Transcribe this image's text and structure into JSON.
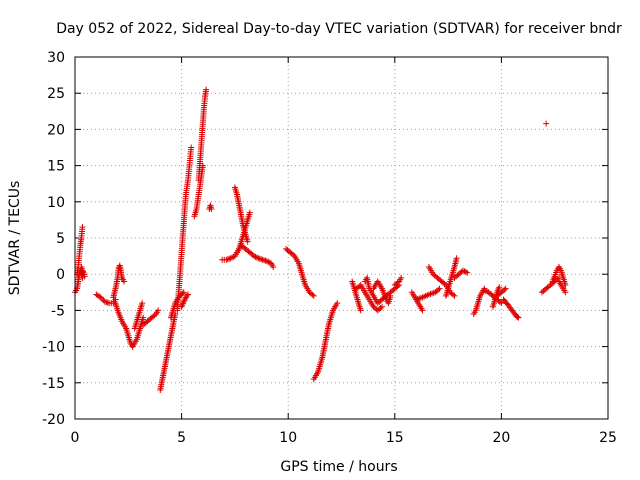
{
  "chart_data": {
    "type": "scatter",
    "title": "Day 052 of 2022, Sidereal Day-to-day VTEC variation (SDTVAR) for receiver bndr",
    "xlabel": "GPS time / hours",
    "ylabel": "SDTVAR / TECUs",
    "xlim": [
      0,
      25
    ],
    "ylim": [
      -20,
      30
    ],
    "xticks": [
      0,
      5,
      10,
      15,
      20,
      25
    ],
    "yticks": [
      -20,
      -15,
      -10,
      -5,
      0,
      5,
      10,
      15,
      20,
      25,
      30
    ],
    "grid": true,
    "marker": "+",
    "color": "#e00000",
    "segments": [
      {
        "points": [
          [
            0.0,
            -2.5
          ],
          [
            0.1,
            -2
          ],
          [
            0.15,
            -1
          ],
          [
            0.2,
            0
          ],
          [
            0.25,
            0.5
          ],
          [
            0.3,
            0
          ],
          [
            0.35,
            -0.5
          ]
        ]
      },
      {
        "points": [
          [
            0.1,
            0
          ],
          [
            0.15,
            1
          ],
          [
            0.2,
            2.5
          ],
          [
            0.25,
            4
          ],
          [
            0.3,
            5
          ],
          [
            0.35,
            6.5
          ]
        ]
      },
      {
        "points": [
          [
            0.3,
            1
          ],
          [
            0.35,
            0.5
          ],
          [
            0.4,
            0.2
          ],
          [
            0.45,
            -0.3
          ]
        ]
      },
      {
        "points": [
          [
            1.0,
            -2.8
          ],
          [
            1.2,
            -3.2
          ],
          [
            1.4,
            -3.8
          ],
          [
            1.6,
            -4
          ],
          [
            1.8,
            -4
          ],
          [
            1.9,
            -3.5
          ]
        ]
      },
      {
        "points": [
          [
            1.8,
            -3.2
          ],
          [
            1.9,
            -2
          ],
          [
            2.0,
            -0.5
          ],
          [
            2.05,
            0.8
          ],
          [
            2.1,
            1.2
          ],
          [
            2.15,
            0.5
          ],
          [
            2.2,
            -0.5
          ],
          [
            2.3,
            -1
          ]
        ]
      },
      {
        "points": [
          [
            1.9,
            -4
          ],
          [
            2.0,
            -5
          ],
          [
            2.2,
            -6.5
          ],
          [
            2.4,
            -7.5
          ],
          [
            2.5,
            -8.5
          ],
          [
            2.6,
            -9.5
          ],
          [
            2.7,
            -10
          ]
        ]
      },
      {
        "points": [
          [
            2.7,
            -10
          ],
          [
            2.8,
            -9.5
          ],
          [
            2.9,
            -9
          ],
          [
            3.0,
            -8
          ],
          [
            3.1,
            -7
          ],
          [
            3.2,
            -6
          ]
        ]
      },
      {
        "points": [
          [
            2.8,
            -7.5
          ],
          [
            2.9,
            -6.5
          ],
          [
            3.0,
            -5.5
          ],
          [
            3.1,
            -4.5
          ],
          [
            3.15,
            -4
          ]
        ]
      },
      {
        "points": [
          [
            3.2,
            -7
          ],
          [
            3.4,
            -6.5
          ],
          [
            3.6,
            -6
          ],
          [
            3.8,
            -5.5
          ],
          [
            3.9,
            -5
          ]
        ]
      },
      {
        "points": [
          [
            4.0,
            -16
          ],
          [
            4.1,
            -14.5
          ],
          [
            4.2,
            -13
          ],
          [
            4.3,
            -11.5
          ],
          [
            4.4,
            -10
          ],
          [
            4.5,
            -8.5
          ],
          [
            4.6,
            -7
          ],
          [
            4.7,
            -5.5
          ]
        ]
      },
      {
        "points": [
          [
            4.5,
            -6
          ],
          [
            4.6,
            -5
          ],
          [
            4.7,
            -4
          ],
          [
            4.8,
            -3.5
          ],
          [
            4.9,
            -3
          ],
          [
            5.0,
            -2.8
          ],
          [
            5.1,
            -2.5
          ]
        ]
      },
      {
        "points": [
          [
            4.8,
            -5
          ],
          [
            4.85,
            -3
          ],
          [
            4.9,
            -1
          ],
          [
            4.95,
            1
          ],
          [
            5.0,
            3
          ],
          [
            5.05,
            5
          ],
          [
            5.1,
            7
          ],
          [
            5.15,
            9
          ],
          [
            5.2,
            11
          ]
        ]
      },
      {
        "points": [
          [
            5.2,
            11
          ],
          [
            5.3,
            13
          ],
          [
            5.35,
            14.5
          ],
          [
            5.4,
            16
          ],
          [
            5.45,
            17.5
          ]
        ]
      },
      {
        "points": [
          [
            5.0,
            -4.5
          ],
          [
            5.1,
            -3.8
          ],
          [
            5.2,
            -3.2
          ],
          [
            5.3,
            -2.8
          ]
        ]
      },
      {
        "points": [
          [
            5.6,
            8
          ],
          [
            5.7,
            9
          ],
          [
            5.8,
            11
          ],
          [
            5.9,
            13
          ],
          [
            6.0,
            15
          ]
        ]
      },
      {
        "points": [
          [
            5.8,
            13
          ],
          [
            5.85,
            15
          ],
          [
            5.9,
            17
          ],
          [
            5.95,
            19
          ],
          [
            6.0,
            21
          ],
          [
            6.05,
            23
          ],
          [
            6.1,
            24.5
          ],
          [
            6.15,
            25.5
          ]
        ]
      },
      {
        "points": [
          [
            6.3,
            9
          ],
          [
            6.35,
            9.5
          ],
          [
            6.4,
            9
          ]
        ]
      },
      {
        "points": [
          [
            6.9,
            2
          ],
          [
            7.1,
            2
          ],
          [
            7.3,
            2.2
          ],
          [
            7.5,
            2.5
          ],
          [
            7.6,
            3
          ],
          [
            7.7,
            3.5
          ]
        ]
      },
      {
        "points": [
          [
            7.5,
            12
          ],
          [
            7.6,
            11
          ],
          [
            7.7,
            9.5
          ],
          [
            7.8,
            8
          ],
          [
            7.9,
            6.5
          ],
          [
            8.0,
            5.5
          ],
          [
            8.1,
            4.5
          ]
        ]
      },
      {
        "points": [
          [
            7.7,
            3.5
          ],
          [
            7.8,
            4.5
          ],
          [
            7.9,
            5.5
          ],
          [
            8.0,
            6.5
          ],
          [
            8.1,
            7.5
          ],
          [
            8.2,
            8.5
          ]
        ]
      },
      {
        "points": [
          [
            7.8,
            4
          ],
          [
            8.0,
            3.5
          ],
          [
            8.2,
            3
          ],
          [
            8.4,
            2.5
          ],
          [
            8.6,
            2.2
          ],
          [
            8.8,
            2
          ],
          [
            9.0,
            1.8
          ],
          [
            9.2,
            1.5
          ],
          [
            9.3,
            1
          ]
        ]
      },
      {
        "points": [
          [
            9.9,
            3.5
          ],
          [
            10.1,
            3
          ],
          [
            10.3,
            2.5
          ],
          [
            10.5,
            1.5
          ],
          [
            10.6,
            0.5
          ],
          [
            10.7,
            -0.5
          ],
          [
            10.8,
            -1.5
          ],
          [
            11.0,
            -2.5
          ],
          [
            11.2,
            -3
          ]
        ]
      },
      {
        "points": [
          [
            11.2,
            -14.5
          ],
          [
            11.3,
            -14
          ],
          [
            11.4,
            -13.5
          ],
          [
            11.5,
            -12.5
          ],
          [
            11.6,
            -11.5
          ],
          [
            11.7,
            -10
          ],
          [
            11.8,
            -8.5
          ],
          [
            11.9,
            -7
          ],
          [
            12.0,
            -6
          ],
          [
            12.1,
            -5
          ],
          [
            12.2,
            -4.5
          ],
          [
            12.3,
            -4
          ]
        ]
      },
      {
        "points": [
          [
            13.0,
            -1
          ],
          [
            13.1,
            -2
          ],
          [
            13.2,
            -3
          ],
          [
            13.3,
            -4
          ],
          [
            13.4,
            -5
          ]
        ]
      },
      {
        "points": [
          [
            13.2,
            -2
          ],
          [
            13.4,
            -1.5
          ],
          [
            13.6,
            -2.5
          ],
          [
            13.8,
            -3.5
          ],
          [
            14.0,
            -4.5
          ],
          [
            14.2,
            -5
          ],
          [
            14.4,
            -4.5
          ]
        ]
      },
      {
        "points": [
          [
            13.6,
            -1
          ],
          [
            13.7,
            -0.5
          ],
          [
            13.8,
            -2
          ],
          [
            14.0,
            -3
          ],
          [
            14.2,
            -4
          ],
          [
            14.4,
            -3.5
          ],
          [
            14.6,
            -3
          ],
          [
            14.8,
            -2.5
          ],
          [
            15.0,
            -2
          ],
          [
            15.2,
            -1.5
          ]
        ]
      },
      {
        "points": [
          [
            14.0,
            -2
          ],
          [
            14.2,
            -1
          ],
          [
            14.4,
            -2
          ],
          [
            14.6,
            -3.5
          ],
          [
            14.7,
            -4
          ],
          [
            14.8,
            -3
          ]
        ]
      },
      {
        "points": [
          [
            15.0,
            -1.5
          ],
          [
            15.2,
            -1
          ],
          [
            15.3,
            -0.5
          ]
        ]
      },
      {
        "points": [
          [
            15.8,
            -2.5
          ],
          [
            15.9,
            -3
          ],
          [
            16.0,
            -3.5
          ],
          [
            16.1,
            -4
          ],
          [
            16.2,
            -4.5
          ],
          [
            16.3,
            -5
          ]
        ]
      },
      {
        "points": [
          [
            16.0,
            -3.5
          ],
          [
            16.3,
            -3.2
          ],
          [
            16.6,
            -2.8
          ],
          [
            16.9,
            -2.5
          ],
          [
            17.1,
            -2
          ]
        ]
      },
      {
        "points": [
          [
            16.6,
            1
          ],
          [
            16.8,
            0
          ],
          [
            17.0,
            -0.5
          ],
          [
            17.2,
            -1
          ],
          [
            17.4,
            -1.5
          ],
          [
            17.6,
            -2.5
          ],
          [
            17.8,
            -3
          ]
        ]
      },
      {
        "points": [
          [
            17.4,
            -3
          ],
          [
            17.5,
            -2
          ],
          [
            17.6,
            -1
          ],
          [
            17.7,
            0
          ],
          [
            17.8,
            1
          ],
          [
            17.9,
            2.2
          ]
        ]
      },
      {
        "points": [
          [
            17.8,
            -0.5
          ],
          [
            18.0,
            0
          ],
          [
            18.2,
            0.5
          ],
          [
            18.4,
            0.2
          ]
        ]
      },
      {
        "points": [
          [
            18.7,
            -5.5
          ],
          [
            18.8,
            -5
          ],
          [
            18.9,
            -4
          ],
          [
            19.0,
            -3
          ],
          [
            19.1,
            -2.5
          ],
          [
            19.2,
            -2
          ]
        ]
      },
      {
        "points": [
          [
            19.2,
            -2.2
          ],
          [
            19.4,
            -2.5
          ],
          [
            19.6,
            -3
          ],
          [
            19.8,
            -3.5
          ],
          [
            20.0,
            -4
          ]
        ]
      },
      {
        "points": [
          [
            19.6,
            -4.5
          ],
          [
            19.7,
            -3.5
          ],
          [
            19.8,
            -2.5
          ],
          [
            19.9,
            -1.8
          ]
        ]
      },
      {
        "points": [
          [
            19.8,
            -3
          ],
          [
            20.0,
            -2.5
          ],
          [
            20.2,
            -2
          ]
        ]
      },
      {
        "points": [
          [
            20.1,
            -3.5
          ],
          [
            20.3,
            -4.2
          ],
          [
            20.5,
            -5
          ],
          [
            20.7,
            -5.8
          ],
          [
            20.8,
            -6
          ]
        ]
      },
      {
        "points": [
          [
            21.9,
            -2.5
          ],
          [
            22.1,
            -2
          ],
          [
            22.3,
            -1.5
          ],
          [
            22.5,
            -1
          ],
          [
            22.7,
            -0.5
          ]
        ]
      },
      {
        "points": [
          [
            22.4,
            -1
          ],
          [
            22.5,
            -0.3
          ],
          [
            22.6,
            0.5
          ],
          [
            22.7,
            1
          ],
          [
            22.8,
            0.5
          ],
          [
            22.9,
            -0.5
          ],
          [
            23.0,
            -1.5
          ]
        ]
      },
      {
        "points": [
          [
            22.7,
            -1
          ],
          [
            22.8,
            -1.5
          ],
          [
            22.9,
            -2
          ],
          [
            23.0,
            -2.5
          ]
        ]
      },
      {
        "points": [
          [
            22.1,
            20.8
          ]
        ]
      }
    ]
  }
}
